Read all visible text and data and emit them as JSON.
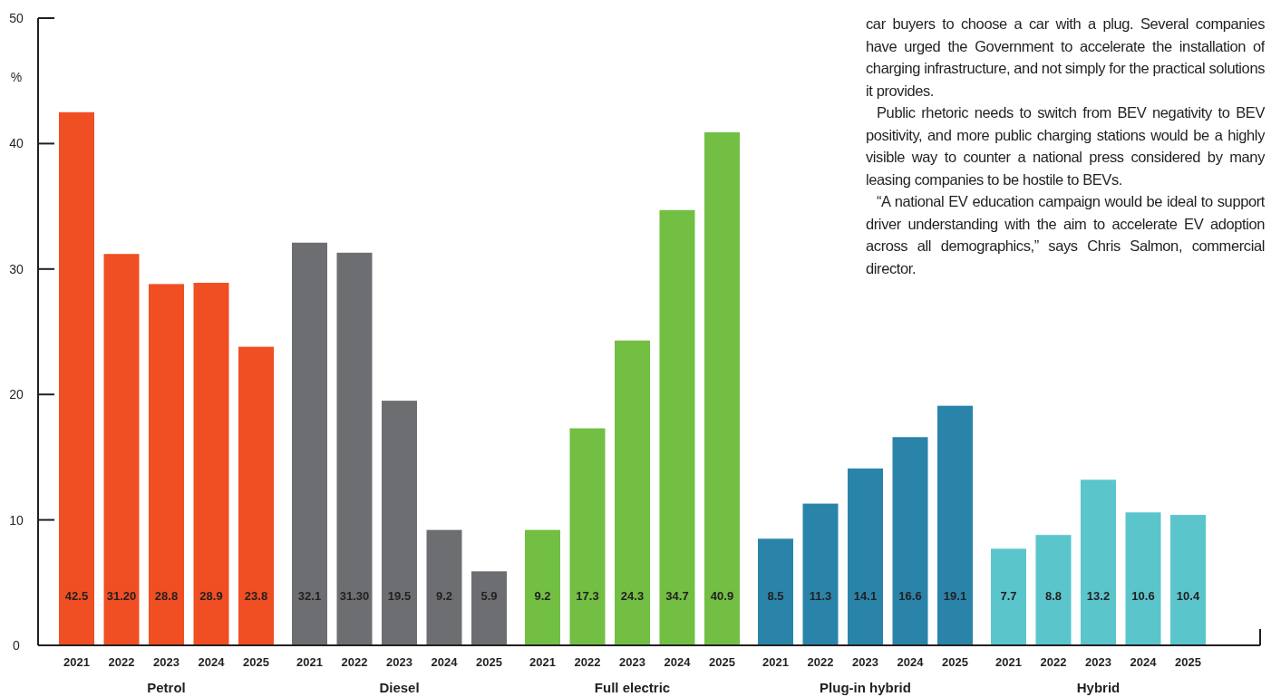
{
  "chart_data": {
    "type": "bar",
    "ylabel": "%",
    "categories": [
      "Petrol",
      "Diesel",
      "Full electric",
      "Plug-in hybrid",
      "Hybrid"
    ],
    "series": [
      {
        "name": "2021",
        "colors": [
          "#f04e23",
          "#6d6e71",
          "#72bf44",
          "#2a84aa",
          "#5bc5cc"
        ],
        "values": [
          42.5,
          32.1,
          9.2,
          8.5,
          7.7
        ],
        "value_labels": [
          "42.5",
          "32.1",
          "9.2",
          "8.5",
          "7.7"
        ]
      },
      {
        "name": "2022",
        "colors": [
          "#f04e23",
          "#6d6e71",
          "#72bf44",
          "#2a84aa",
          "#5bc5cc"
        ],
        "values": [
          31.2,
          31.3,
          17.3,
          11.3,
          8.8
        ],
        "value_labels": [
          "31.20",
          "31.30",
          "17.3",
          "11.3",
          "8.8"
        ]
      },
      {
        "name": "2023",
        "colors": [
          "#f04e23",
          "#6d6e71",
          "#72bf44",
          "#2a84aa",
          "#5bc5cc"
        ],
        "values": [
          28.8,
          19.5,
          24.3,
          14.1,
          13.2
        ],
        "value_labels": [
          "28.8",
          "19.5",
          "24.3",
          "14.1",
          "13.2"
        ]
      },
      {
        "name": "2024",
        "colors": [
          "#f04e23",
          "#6d6e71",
          "#72bf44",
          "#2a84aa",
          "#5bc5cc"
        ],
        "values": [
          28.9,
          9.2,
          34.7,
          16.6,
          10.6
        ],
        "value_labels": [
          "28.9",
          "9.2",
          "34.7",
          "16.6",
          "10.6"
        ]
      },
      {
        "name": "2025",
        "colors": [
          "#f04e23",
          "#6d6e71",
          "#72bf44",
          "#2a84aa",
          "#5bc5cc"
        ],
        "values": [
          23.8,
          5.9,
          40.9,
          19.1,
          10.4
        ],
        "value_labels": [
          "23.8",
          "5.9",
          "40.9",
          "19.1",
          "10.4"
        ]
      }
    ],
    "ylim": [
      0,
      50
    ],
    "yticks": [
      0,
      10,
      20,
      30,
      40,
      50
    ],
    "annotations": [
      "car buyers to choose a car with a plug. Several companies have urged the Government to accelerate the installation of charging infrastructure, and not simply for the practical solutions it provides.",
      "Public rhetoric needs to switch from BEV negativity to BEV positivity, and more public charging stations would be a highly visible way to counter a national press considered by many leasing companies to be hostile to BEVs.",
      "“A national EV education campaign would be ideal to support driver understanding with the aim to accelerate EV adoption across all demographics,” says Chris Salmon, commercial director."
    ]
  }
}
